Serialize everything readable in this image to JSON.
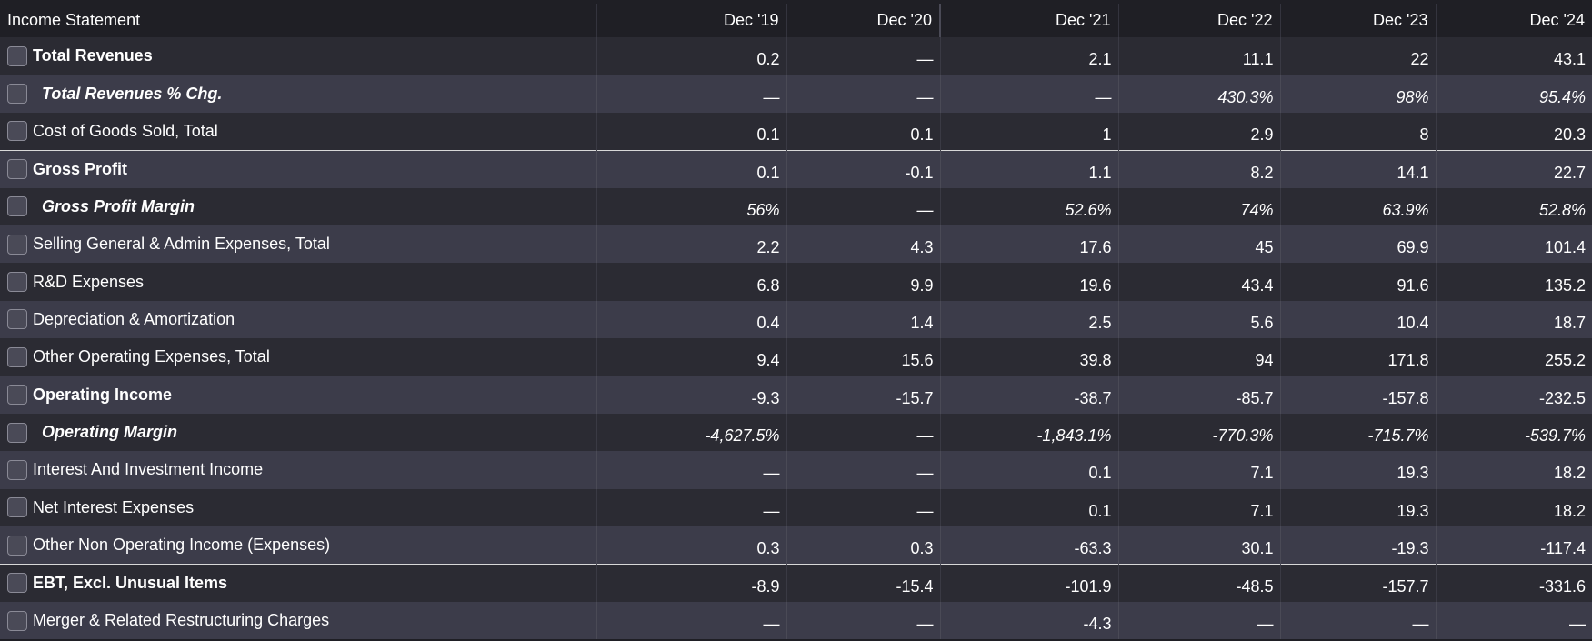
{
  "table": {
    "header": {
      "title": "Income Statement",
      "columns": [
        "Dec '19",
        "Dec '20",
        "Dec '21",
        "Dec '22",
        "Dec '23",
        "Dec '24"
      ]
    },
    "rows": [
      {
        "label": "Total Revenues",
        "style": "bold",
        "shade": "dark",
        "values": [
          "0.2",
          "—",
          "2.1",
          "11.1",
          "22",
          "43.1"
        ]
      },
      {
        "label": "Total Revenues % Chg.",
        "style": "pct",
        "shade": "light",
        "values": [
          "—",
          "—",
          "—",
          "430.3%",
          "98%",
          "95.4%"
        ]
      },
      {
        "label": "Cost of Goods Sold, Total",
        "style": "normal",
        "shade": "dark",
        "values": [
          "0.1",
          "0.1",
          "1",
          "2.9",
          "8",
          "20.3"
        ]
      },
      {
        "label": "Gross Profit",
        "style": "bold",
        "shade": "light",
        "sep": true,
        "values": [
          "0.1",
          "-0.1",
          "1.1",
          "8.2",
          "14.1",
          "22.7"
        ]
      },
      {
        "label": "Gross Profit Margin",
        "style": "pct",
        "shade": "dark",
        "values": [
          "56%",
          "—",
          "52.6%",
          "74%",
          "63.9%",
          "52.8%"
        ]
      },
      {
        "label": "Selling General & Admin Expenses, Total",
        "style": "normal",
        "shade": "light",
        "values": [
          "2.2",
          "4.3",
          "17.6",
          "45",
          "69.9",
          "101.4"
        ]
      },
      {
        "label": "R&D Expenses",
        "style": "normal",
        "shade": "dark",
        "values": [
          "6.8",
          "9.9",
          "19.6",
          "43.4",
          "91.6",
          "135.2"
        ]
      },
      {
        "label": "Depreciation & Amortization",
        "style": "normal",
        "shade": "light",
        "values": [
          "0.4",
          "1.4",
          "2.5",
          "5.6",
          "10.4",
          "18.7"
        ]
      },
      {
        "label": "Other Operating Expenses, Total",
        "style": "normal",
        "shade": "dark",
        "values": [
          "9.4",
          "15.6",
          "39.8",
          "94",
          "171.8",
          "255.2"
        ]
      },
      {
        "label": "Operating Income",
        "style": "bold",
        "shade": "light",
        "sep": true,
        "values": [
          "-9.3",
          "-15.7",
          "-38.7",
          "-85.7",
          "-157.8",
          "-232.5"
        ]
      },
      {
        "label": "Operating Margin",
        "style": "pct",
        "shade": "dark",
        "values": [
          "-4,627.5%",
          "—",
          "-1,843.1%",
          "-770.3%",
          "-715.7%",
          "-539.7%"
        ]
      },
      {
        "label": "Interest And Investment Income",
        "style": "normal",
        "shade": "light",
        "values": [
          "—",
          "—",
          "0.1",
          "7.1",
          "19.3",
          "18.2"
        ]
      },
      {
        "label": "Net Interest Expenses",
        "style": "normal",
        "shade": "dark",
        "values": [
          "—",
          "—",
          "0.1",
          "7.1",
          "19.3",
          "18.2"
        ]
      },
      {
        "label": "Other Non Operating Income (Expenses)",
        "style": "normal",
        "shade": "light",
        "values": [
          "0.3",
          "0.3",
          "-63.3",
          "30.1",
          "-19.3",
          "-117.4"
        ]
      },
      {
        "label": "EBT, Excl. Unusual Items",
        "style": "bold",
        "shade": "dark",
        "sep": true,
        "values": [
          "-8.9",
          "-15.4",
          "-101.9",
          "-48.5",
          "-157.7",
          "-331.6"
        ]
      },
      {
        "label": "Merger & Related Restructuring Charges",
        "style": "normal",
        "shade": "light",
        "values": [
          "—",
          "—",
          "-4.3",
          "—",
          "—",
          "—"
        ]
      }
    ]
  }
}
